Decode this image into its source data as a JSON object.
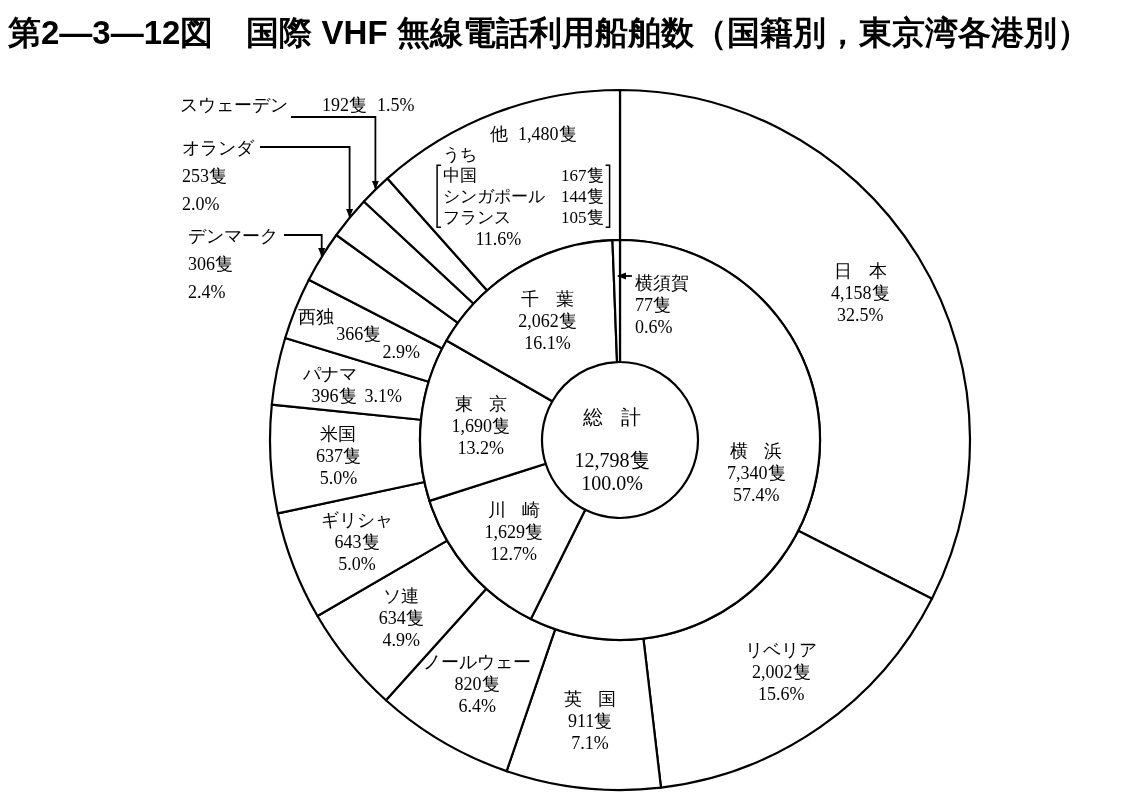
{
  "chart_data": [
    {
      "type": "donut",
      "title": "第2—3—12図　国際 VHF 無線電話利用船舶数（国籍別，東京湾各港別）",
      "categories": [
        "日本",
        "リベリア",
        "英国",
        "ノールウェー",
        "ソ連",
        "ギリシャ",
        "米国",
        "パナマ",
        "西独",
        "デンマーク",
        "オランダ",
        "スウェーデン",
        "他"
      ],
      "values": [
        4158,
        2002,
        911,
        820,
        634,
        643,
        637,
        396,
        366,
        306,
        253,
        192,
        1480
      ],
      "value_labels": [
        "4,158隻 32.5%",
        "2,002隻 15.6%",
        "911隻 7.1%",
        "820隻 6.4%",
        "634隻 4.9%",
        "643隻 5.0%",
        "637隻 5.0%",
        "396隻 3.1%",
        "366隻 2.9%",
        "306隻 2.4%",
        "253隻 2.0%",
        "192隻 1.5%",
        "1,480隻 11.6%"
      ],
      "colors": [
        "#ffffff",
        "#ffffff",
        "#ffffff",
        "#ffffff",
        "#ffffff",
        "#ffffff",
        "#ffffff",
        "#ffffff",
        "#ffffff",
        "#ffffff",
        "#ffffff",
        "#ffffff",
        "#ffffff"
      ],
      "annotations": [
        "うち",
        "中国 167隻",
        "シンガポール 144隻",
        "フランス 105隻"
      ]
    },
    {
      "type": "donut",
      "categories": [
        "横浜",
        "川崎",
        "東京",
        "千葉",
        "横須賀"
      ],
      "values": [
        7340,
        1629,
        1690,
        2062,
        77
      ],
      "value_labels": [
        "7,340隻 57.4%",
        "1,629隻 12.7%",
        "1,690隻 13.2%",
        "2,062隻 16.1%",
        "77隻 0.6%"
      ],
      "colors": [
        "#ffffff",
        "#ffffff",
        "#ffffff",
        "#ffffff",
        "#ffffff"
      ],
      "annotations": [
        "総計 12,798隻 100.0%"
      ]
    }
  ]
}
